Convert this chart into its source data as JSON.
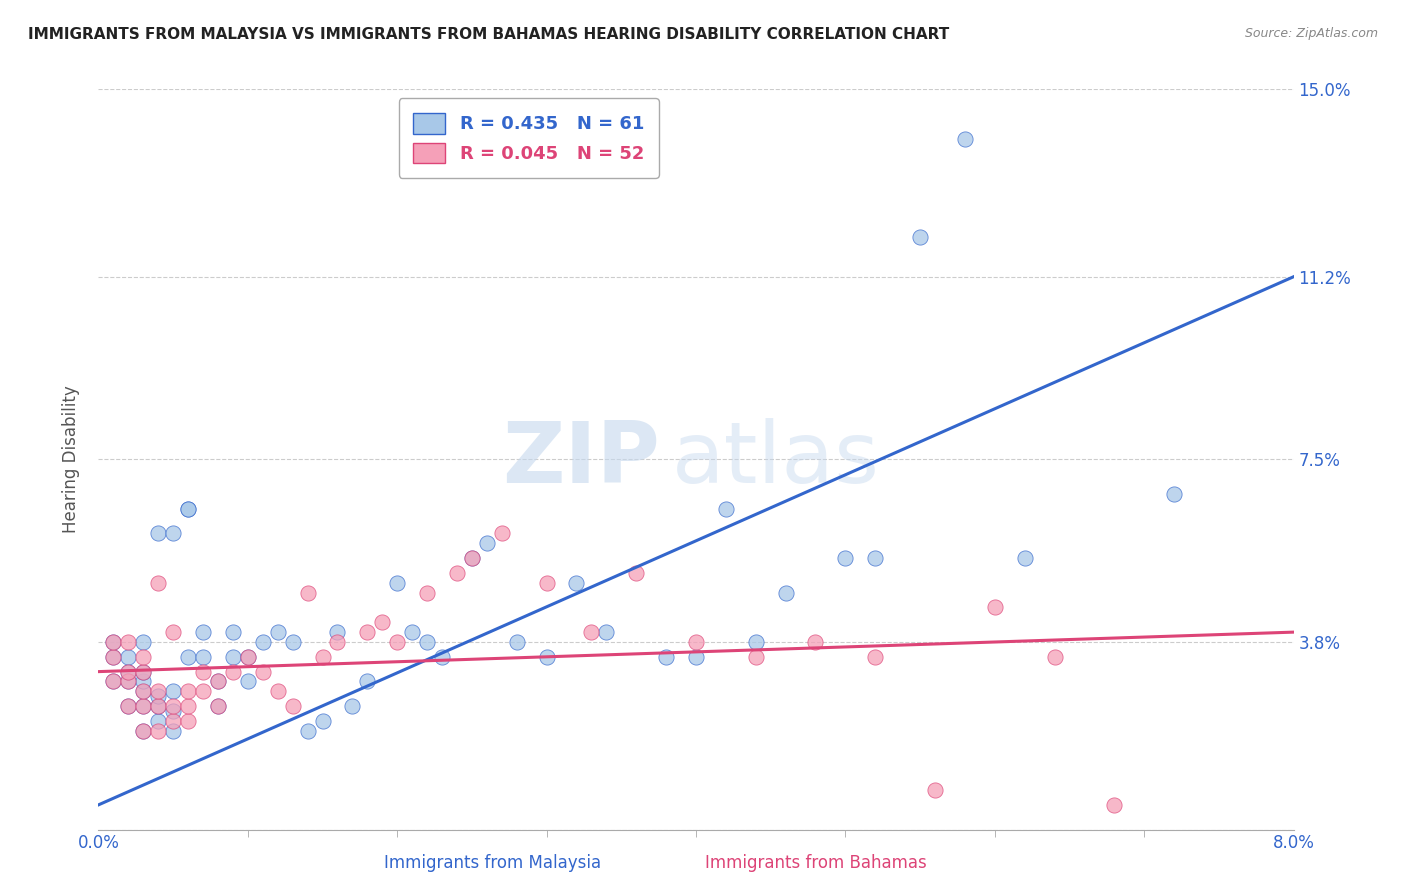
{
  "title": "IMMIGRANTS FROM MALAYSIA VS IMMIGRANTS FROM BAHAMAS HEARING DISABILITY CORRELATION CHART",
  "source": "Source: ZipAtlas.com",
  "xlabel_malaysia": "Immigrants from Malaysia",
  "xlabel_bahamas": "Immigrants from Bahamas",
  "ylabel": "Hearing Disability",
  "xmin": 0.0,
  "xmax": 0.08,
  "ymin": 0.0,
  "ymax": 0.15,
  "yticks": [
    0.0,
    0.038,
    0.075,
    0.112,
    0.15
  ],
  "ytick_labels": [
    "",
    "3.8%",
    "7.5%",
    "11.2%",
    "15.0%"
  ],
  "xtick_labels_left": "0.0%",
  "xtick_labels_right": "8.0%",
  "malaysia_R": 0.435,
  "malaysia_N": 61,
  "bahamas_R": 0.045,
  "bahamas_N": 52,
  "malaysia_color": "#a8c8e8",
  "bahamas_color": "#f5a0b8",
  "malaysia_line_color": "#3366cc",
  "bahamas_line_color": "#dd4477",
  "background_color": "#ffffff",
  "watermark_zip": "ZIP",
  "watermark_atlas": "atlas",
  "malaysia_trendline_x": [
    0.0,
    0.08
  ],
  "malaysia_trendline_y": [
    0.005,
    0.112
  ],
  "bahamas_trendline_x": [
    0.0,
    0.08
  ],
  "bahamas_trendline_y": [
    0.032,
    0.04
  ],
  "malaysia_x": [
    0.001,
    0.001,
    0.001,
    0.002,
    0.002,
    0.002,
    0.002,
    0.003,
    0.003,
    0.003,
    0.003,
    0.003,
    0.003,
    0.004,
    0.004,
    0.004,
    0.004,
    0.005,
    0.005,
    0.005,
    0.005,
    0.006,
    0.006,
    0.006,
    0.007,
    0.007,
    0.008,
    0.008,
    0.009,
    0.009,
    0.01,
    0.01,
    0.011,
    0.012,
    0.013,
    0.014,
    0.015,
    0.016,
    0.017,
    0.018,
    0.02,
    0.021,
    0.022,
    0.023,
    0.025,
    0.026,
    0.028,
    0.03,
    0.032,
    0.034,
    0.038,
    0.04,
    0.042,
    0.044,
    0.046,
    0.05,
    0.052,
    0.055,
    0.058,
    0.062,
    0.072
  ],
  "malaysia_y": [
    0.03,
    0.035,
    0.038,
    0.025,
    0.03,
    0.032,
    0.035,
    0.02,
    0.025,
    0.028,
    0.03,
    0.032,
    0.038,
    0.022,
    0.025,
    0.027,
    0.06,
    0.02,
    0.024,
    0.028,
    0.06,
    0.065,
    0.065,
    0.035,
    0.035,
    0.04,
    0.025,
    0.03,
    0.035,
    0.04,
    0.03,
    0.035,
    0.038,
    0.04,
    0.038,
    0.02,
    0.022,
    0.04,
    0.025,
    0.03,
    0.05,
    0.04,
    0.038,
    0.035,
    0.055,
    0.058,
    0.038,
    0.035,
    0.05,
    0.04,
    0.035,
    0.035,
    0.065,
    0.038,
    0.048,
    0.055,
    0.055,
    0.12,
    0.14,
    0.055,
    0.068
  ],
  "bahamas_x": [
    0.001,
    0.001,
    0.001,
    0.002,
    0.002,
    0.002,
    0.002,
    0.003,
    0.003,
    0.003,
    0.003,
    0.003,
    0.004,
    0.004,
    0.004,
    0.004,
    0.005,
    0.005,
    0.005,
    0.006,
    0.006,
    0.006,
    0.007,
    0.007,
    0.008,
    0.008,
    0.009,
    0.01,
    0.011,
    0.012,
    0.013,
    0.014,
    0.015,
    0.016,
    0.018,
    0.019,
    0.02,
    0.022,
    0.024,
    0.025,
    0.027,
    0.03,
    0.033,
    0.036,
    0.04,
    0.044,
    0.048,
    0.052,
    0.056,
    0.06,
    0.064,
    0.068
  ],
  "bahamas_y": [
    0.03,
    0.035,
    0.038,
    0.025,
    0.03,
    0.032,
    0.038,
    0.02,
    0.025,
    0.028,
    0.032,
    0.035,
    0.02,
    0.025,
    0.028,
    0.05,
    0.022,
    0.025,
    0.04,
    0.022,
    0.025,
    0.028,
    0.028,
    0.032,
    0.025,
    0.03,
    0.032,
    0.035,
    0.032,
    0.028,
    0.025,
    0.048,
    0.035,
    0.038,
    0.04,
    0.042,
    0.038,
    0.048,
    0.052,
    0.055,
    0.06,
    0.05,
    0.04,
    0.052,
    0.038,
    0.035,
    0.038,
    0.035,
    0.008,
    0.045,
    0.035,
    0.005
  ]
}
